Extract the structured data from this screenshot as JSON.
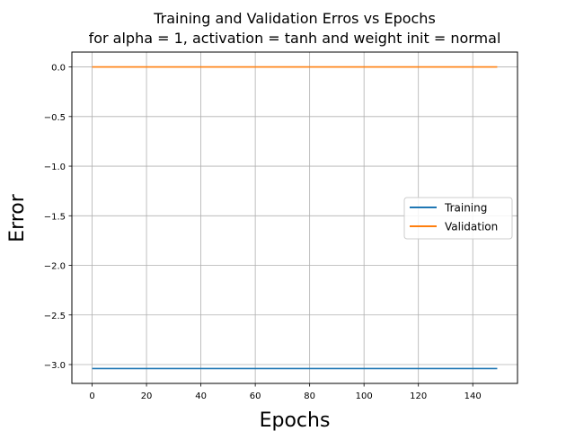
{
  "chart_data": {
    "type": "line",
    "title": "Training and Validation Erros vs Epochs",
    "subtitle": "for alpha = 1, activation = tanh and weight init = normal",
    "xlabel": "Epochs",
    "ylabel": "Error",
    "xlim": [
      -7.45,
      156.45
    ],
    "ylim": [
      -3.19,
      0.15
    ],
    "xticks": [
      0,
      20,
      40,
      60,
      80,
      100,
      120,
      140
    ],
    "yticks": [
      0.0,
      -0.5,
      -1.0,
      -1.5,
      -2.0,
      -2.5,
      -3.0
    ],
    "ytick_labels": [
      "0.0",
      "−0.5",
      "−1.0",
      "−1.5",
      "−2.0",
      "−2.5",
      "−3.0"
    ],
    "grid": true,
    "legend_position": "center-right",
    "series": [
      {
        "name": "Training",
        "color": "#1f77b4",
        "x": [
          0,
          149
        ],
        "y": [
          -3.04,
          -3.04
        ]
      },
      {
        "name": "Validation",
        "color": "#ff7f0e",
        "x": [
          0,
          149
        ],
        "y": [
          0.0,
          0.0
        ]
      }
    ]
  }
}
